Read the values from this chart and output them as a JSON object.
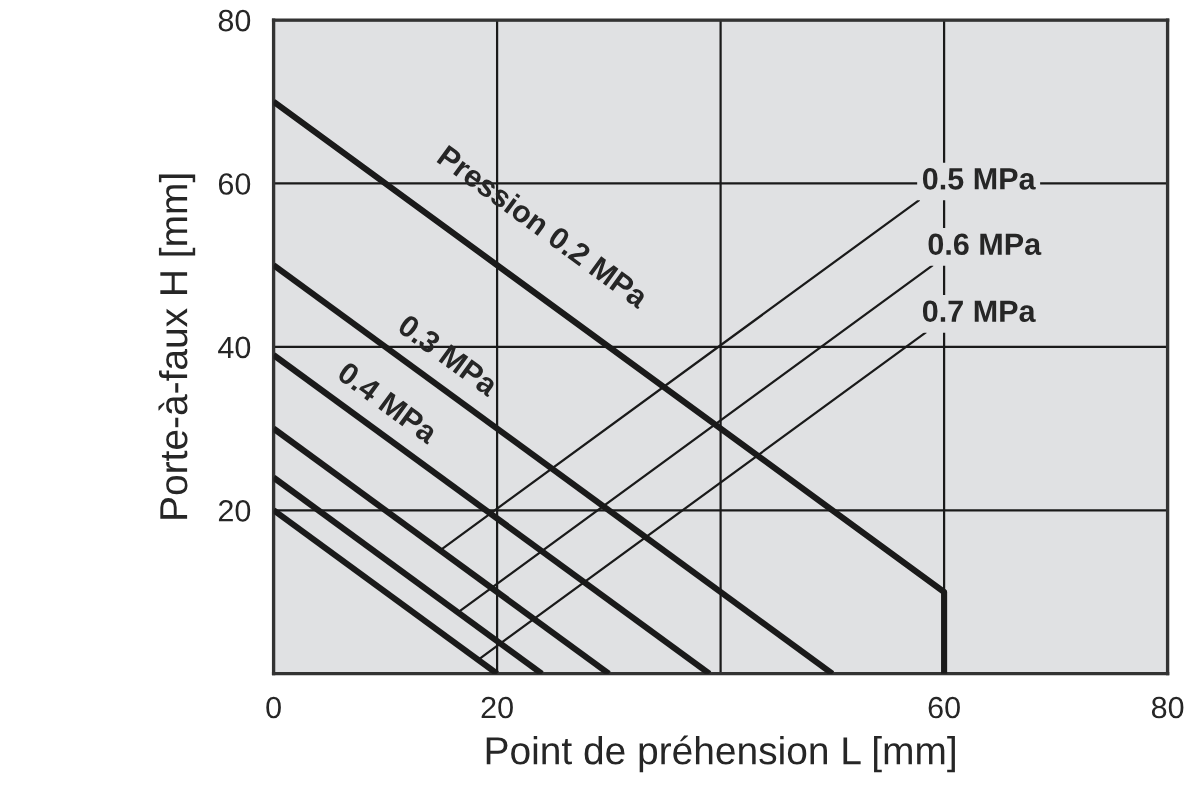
{
  "chart_data": {
    "type": "line",
    "xlabel": "Point de préhension L [mm]",
    "ylabel": "Porte-à-faux H [mm]",
    "series": [
      {
        "color": "#1a1a1a",
        "x": [
          0,
          60,
          60
        ],
        "values": [
          70,
          10,
          0
        ]
      },
      {
        "color": "#1a1a1a",
        "x": [
          0,
          50
        ],
        "values": [
          50,
          0
        ]
      },
      {
        "color": "#1a1a1a",
        "x": [
          0,
          39
        ],
        "values": [
          39,
          0
        ]
      },
      {
        "color": "#1a1a1a",
        "x": [
          0,
          30
        ],
        "values": [
          30,
          0
        ]
      },
      {
        "color": "#1a1a1a",
        "x": [
          0,
          24
        ],
        "values": [
          24,
          0
        ]
      },
      {
        "color": "#1a1a1a",
        "x": [
          0,
          20
        ],
        "values": [
          20,
          0
        ]
      }
    ],
    "annotations": [
      {
        "text": "Pression 0.2 MPa",
        "x": 21,
        "y": 49
      },
      {
        "text": "0.3 MPa",
        "x": 14,
        "y": 36
      },
      {
        "text": "0.4 MPa",
        "x": 8.6,
        "y": 30.2
      },
      {
        "text": "0.5 MPa",
        "x": 14.9,
        "y": 15.1
      },
      {
        "text": "0.6 MPa",
        "x": 16.5,
        "y": 7.5
      },
      {
        "text": "0.7 MPa",
        "x": 18.3,
        "y": 1.7
      }
    ],
    "xlim": [
      0,
      80
    ],
    "ylim": [
      0,
      80
    ],
    "xticks": [
      0,
      20,
      {
        "value": 40,
        "label": null
      },
      60,
      80
    ],
    "yticks": [
      {
        "value": 0,
        "label": null
      },
      20,
      40,
      60,
      80
    ],
    "grid": true,
    "line_style": "solid",
    "marker": "none"
  }
}
